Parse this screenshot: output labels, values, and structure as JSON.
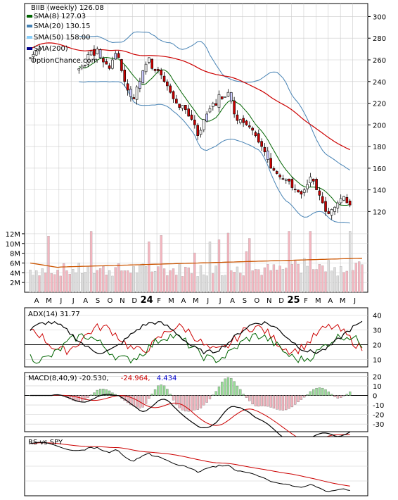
{
  "chart_data": [
    {
      "type": "candlestick",
      "panel": "price",
      "ticker": "BIIB",
      "period": "weekly",
      "title": "BIIB (weekly) 126.08",
      "last_close": 126.08,
      "watermark": "OptionChance.com",
      "y_axis_ticks": [
        120,
        140,
        160,
        180,
        200,
        220,
        240,
        260,
        280,
        300
      ],
      "ylim": [
        104,
        312
      ],
      "x_axis_labels": [
        "A",
        "M",
        "J",
        "J",
        "A",
        "S",
        "O",
        "N",
        "D",
        "24",
        "F",
        "M",
        "A",
        "M",
        "J",
        "J",
        "A",
        "S",
        "O",
        "N",
        "D",
        "25",
        "F",
        "M",
        "A",
        "M",
        "J"
      ],
      "legend": [
        {
          "label": "SMA(8) 127.03",
          "color": "#006400"
        },
        {
          "label": "SMA(20) 130.15",
          "color": "#4682b4"
        },
        {
          "label": "SMA(50) 158.00",
          "color": "#87cefa"
        },
        {
          "label": "SMA(200)",
          "color": "#00008b"
        }
      ],
      "series_approx_close": [
        262,
        265,
        268,
        270,
        null,
        null,
        null,
        null,
        null,
        null,
        null,
        null,
        null,
        null,
        null,
        null,
        null,
        null,
        255,
        265,
        268,
        264,
        270,
        262,
        258,
        256,
        252,
        260,
        266,
        262,
        250,
        240,
        232,
        226,
        224,
        235,
        240,
        250,
        256,
        262,
        252,
        250,
        250,
        246,
        240,
        236,
        230,
        224,
        220,
        216,
        218,
        214,
        208,
        205,
        200,
        190,
        195,
        205,
        210,
        215,
        220,
        218,
        228,
        224,
        226,
        230,
        222,
        210,
        204,
        205,
        202,
        200,
        198,
        195,
        190,
        184,
        180,
        175,
        168,
        160,
        158,
        155,
        152,
        150,
        150,
        148,
        142,
        140,
        138,
        136,
        140,
        145,
        152,
        148,
        140,
        135,
        128,
        120,
        118,
        122,
        124,
        128,
        132,
        134,
        128,
        126
      ]
    },
    {
      "type": "bar",
      "panel": "volume",
      "y_axis_ticks": [
        "2M",
        "4M",
        "6M",
        "8M",
        "10M",
        "12M"
      ],
      "ylim_millions": [
        0,
        13
      ]
    },
    {
      "type": "line",
      "panel": "ADX",
      "label": "ADX(14) 31.77",
      "adx_value": 31.77,
      "y_axis_ticks": [
        10,
        20,
        30,
        40
      ],
      "ylim": [
        5,
        45
      ]
    },
    {
      "type": "line",
      "panel": "MACD",
      "label": "MACD(8,40,9) -20.530,",
      "values": {
        "macd": "-20.530,",
        "signal": "-24.964,",
        "histogram": "4.434"
      },
      "colors": {
        "signal": "#cc0000",
        "histogram": "#0000cc"
      },
      "y_axis_ticks": [
        20,
        10,
        0,
        -10,
        -20,
        -30
      ],
      "ylim": [
        -38,
        24
      ]
    },
    {
      "type": "line",
      "panel": "RS",
      "label": "RS vs SPY",
      "y_axis_ticks": []
    }
  ],
  "colors": {
    "up_candle": "#ffffff",
    "down_candle": "#cc0000",
    "volume_up": "#dddddd",
    "volume_down": "#f4b6c0",
    "vol_avg": "#cc5500",
    "grid": "#cccccc",
    "sma8": "#006400",
    "sma20": "#4682b4",
    "sma50": "#87cefa",
    "sma200": "#00008b",
    "long_ma": "#cc0000"
  }
}
